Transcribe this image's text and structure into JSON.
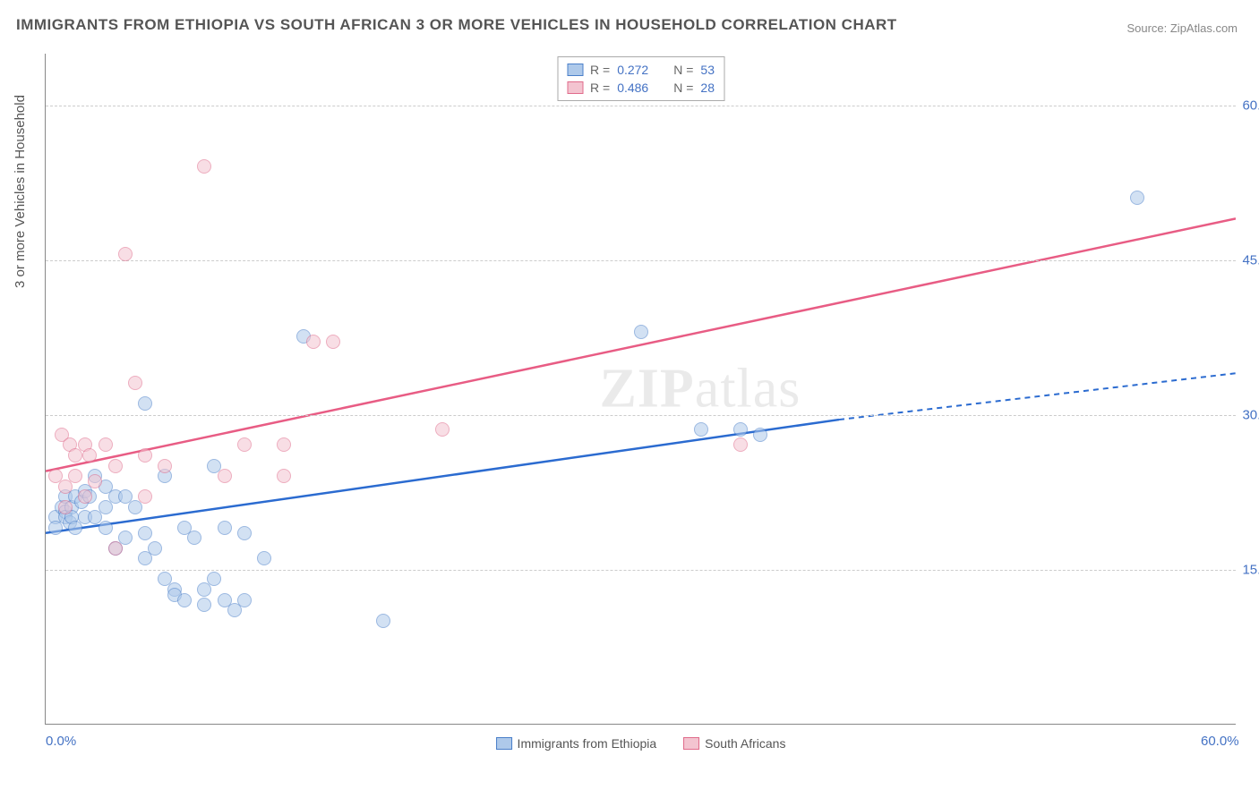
{
  "title": "IMMIGRANTS FROM ETHIOPIA VS SOUTH AFRICAN 3 OR MORE VEHICLES IN HOUSEHOLD CORRELATION CHART",
  "source": "Source: ZipAtlas.com",
  "ylabel": "3 or more Vehicles in Household",
  "watermark_a": "ZIP",
  "watermark_b": "atlas",
  "chart": {
    "type": "scatter",
    "xlim": [
      0,
      60
    ],
    "ylim": [
      0,
      65
    ],
    "xticks": [
      {
        "value": 0,
        "label": "0.0%"
      },
      {
        "value": 60,
        "label": "60.0%"
      }
    ],
    "yticks": [
      {
        "value": 15,
        "label": "15.0%"
      },
      {
        "value": 30,
        "label": "30.0%"
      },
      {
        "value": 45,
        "label": "45.0%"
      },
      {
        "value": 60,
        "label": "60.0%"
      }
    ],
    "grid_color": "#cccccc",
    "axis_color": "#888888",
    "background_color": "#ffffff",
    "point_radius": 8,
    "point_opacity": 0.55,
    "series": [
      {
        "name": "Immigrants from Ethiopia",
        "fill": "#aec9ea",
        "stroke": "#4a7fc9",
        "line_color": "#2b6bd0",
        "R_label": "R =",
        "R": "0.272",
        "N_label": "N =",
        "N": "53",
        "trend": {
          "x1": 0,
          "y1": 18.5,
          "x2_solid": 40,
          "y2_solid": 29.5,
          "x2": 60,
          "y2": 34
        },
        "points": [
          [
            0.5,
            20
          ],
          [
            0.5,
            19
          ],
          [
            0.8,
            21
          ],
          [
            1,
            20.5
          ],
          [
            1,
            22
          ],
          [
            1,
            20
          ],
          [
            1.2,
            19.5
          ],
          [
            1.3,
            21
          ],
          [
            1.3,
            20
          ],
          [
            1.5,
            19
          ],
          [
            1.5,
            22
          ],
          [
            1.8,
            21.5
          ],
          [
            2,
            22.5
          ],
          [
            2,
            20
          ],
          [
            2.2,
            22
          ],
          [
            2.5,
            20
          ],
          [
            2.5,
            24
          ],
          [
            3,
            21
          ],
          [
            3,
            19
          ],
          [
            3,
            23
          ],
          [
            3.5,
            22
          ],
          [
            3.5,
            17
          ],
          [
            4,
            18
          ],
          [
            4,
            22
          ],
          [
            4.5,
            21
          ],
          [
            5,
            31
          ],
          [
            5,
            18.5
          ],
          [
            5,
            16
          ],
          [
            5.5,
            17
          ],
          [
            6,
            24
          ],
          [
            6,
            14
          ],
          [
            6.5,
            13
          ],
          [
            6.5,
            12.5
          ],
          [
            7,
            19
          ],
          [
            7,
            12
          ],
          [
            7.5,
            18
          ],
          [
            8,
            13
          ],
          [
            8,
            11.5
          ],
          [
            8.5,
            25
          ],
          [
            8.5,
            14
          ],
          [
            9,
            12
          ],
          [
            9,
            19
          ],
          [
            9.5,
            11
          ],
          [
            10,
            18.5
          ],
          [
            10,
            12
          ],
          [
            11,
            16
          ],
          [
            13,
            37.5
          ],
          [
            17,
            10
          ],
          [
            30,
            38
          ],
          [
            33,
            28.5
          ],
          [
            35,
            28.5
          ],
          [
            36,
            28
          ],
          [
            55,
            51
          ]
        ]
      },
      {
        "name": "South Africans",
        "fill": "#f3c4d0",
        "stroke": "#e06b8b",
        "line_color": "#e85c84",
        "R_label": "R =",
        "R": "0.486",
        "N_label": "N =",
        "N": "28",
        "trend": {
          "x1": 0,
          "y1": 24.5,
          "x2_solid": 60,
          "y2_solid": 49,
          "x2": 60,
          "y2": 49
        },
        "points": [
          [
            0.5,
            24
          ],
          [
            0.8,
            28
          ],
          [
            1,
            23
          ],
          [
            1,
            21
          ],
          [
            1.2,
            27
          ],
          [
            1.5,
            26
          ],
          [
            1.5,
            24
          ],
          [
            2,
            27
          ],
          [
            2,
            22
          ],
          [
            2.2,
            26
          ],
          [
            2.5,
            23.5
          ],
          [
            3,
            27
          ],
          [
            3.5,
            25
          ],
          [
            3.5,
            17
          ],
          [
            4,
            45.5
          ],
          [
            4.5,
            33
          ],
          [
            5,
            26
          ],
          [
            5,
            22
          ],
          [
            6,
            25
          ],
          [
            8,
            54
          ],
          [
            9,
            24
          ],
          [
            10,
            27
          ],
          [
            12,
            24
          ],
          [
            12,
            27
          ],
          [
            13.5,
            37
          ],
          [
            14.5,
            37
          ],
          [
            20,
            28.5
          ],
          [
            35,
            27
          ]
        ]
      }
    ]
  },
  "legend_bottom": [
    {
      "label": "Immigrants from Ethiopia",
      "fill": "#aec9ea",
      "stroke": "#4a7fc9"
    },
    {
      "label": "South Africans",
      "fill": "#f3c4d0",
      "stroke": "#e06b8b"
    }
  ],
  "title_fontsize": 17,
  "label_fontsize": 15,
  "legend_fontsize": 14,
  "tick_color": "#4472c4",
  "text_color": "#555555"
}
